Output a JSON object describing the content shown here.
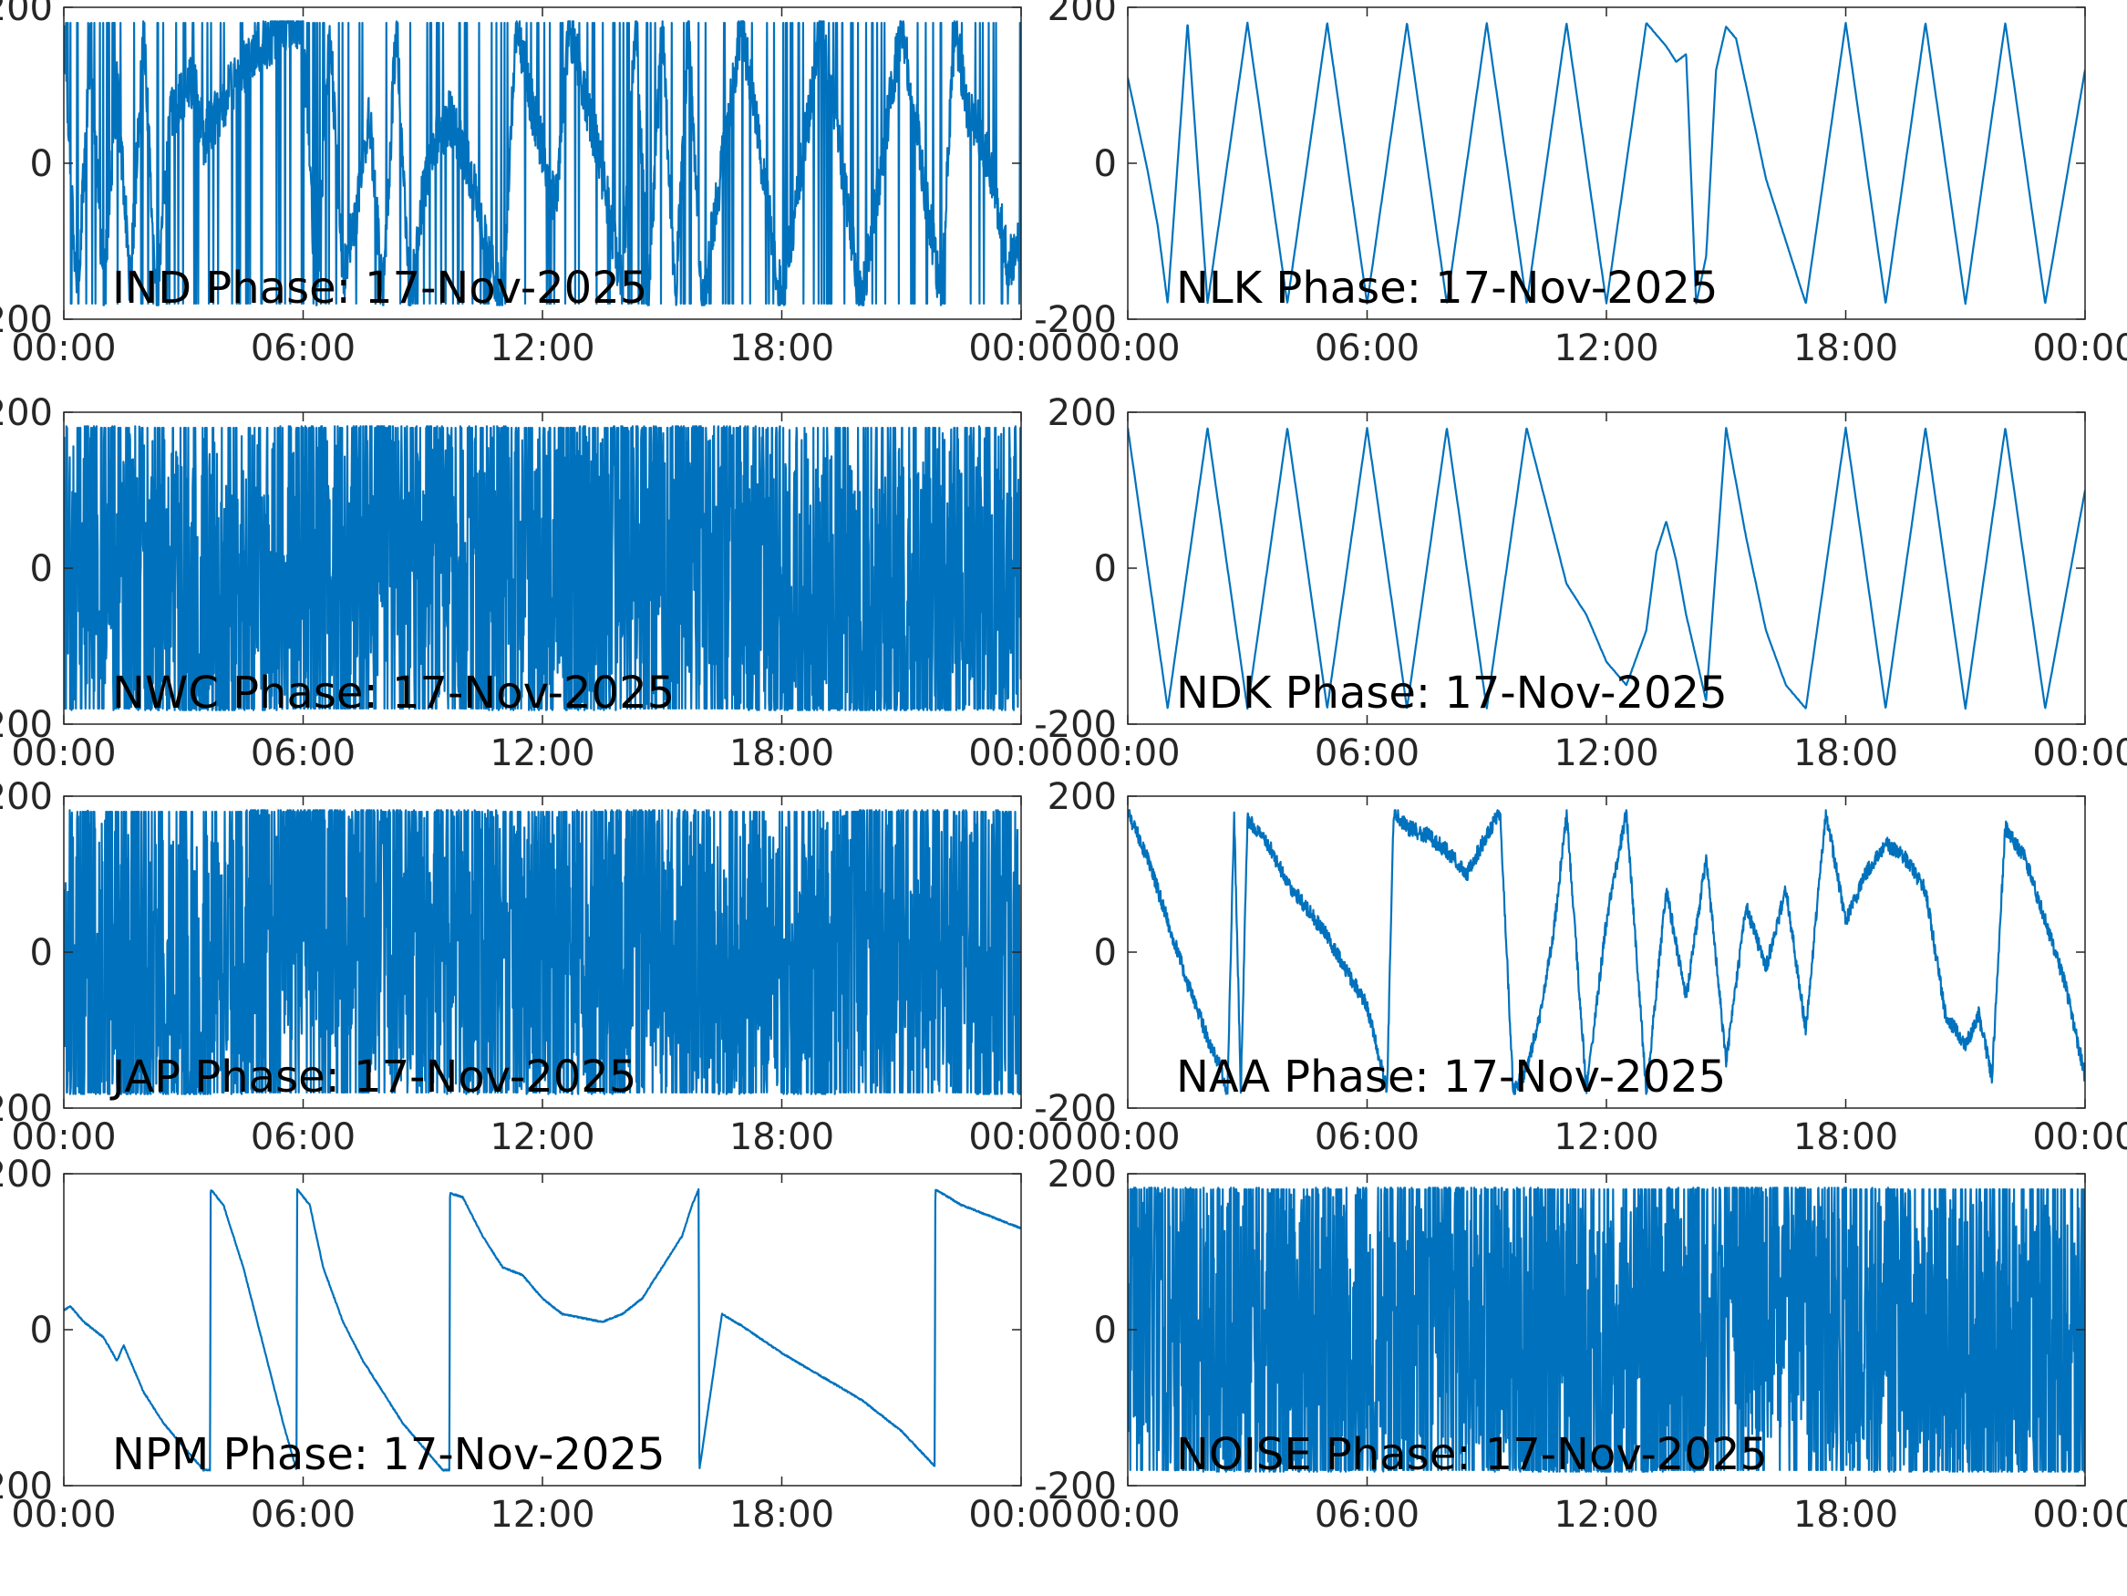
{
  "figure": {
    "date": "17-Nov-2025",
    "series_color": "#0072BD"
  },
  "chart_data": [
    {
      "type": "line",
      "title": "IND Phase: 17-Nov-2025",
      "xlabel": "",
      "ylabel": "",
      "xlim": [
        "00:00",
        "24:00"
      ],
      "ylim": [
        -200,
        200
      ],
      "xticks": [
        "00:00",
        "06:00",
        "12:00",
        "18:00",
        "00:00"
      ],
      "yticks": [
        "-200",
        "0",
        "200"
      ],
      "grid": false,
      "pattern": "mixed",
      "series": [
        {
          "x": [
            "00:00",
            "00:20",
            "00:40",
            "01:00",
            "01:20",
            "01:40",
            "02:00",
            "02:20",
            "02:40",
            "03:00",
            "03:15",
            "03:30",
            "04:00",
            "04:30",
            "05:00",
            "05:30",
            "06:00",
            "06:20",
            "06:40",
            "07:00",
            "07:20",
            "07:40",
            "08:00",
            "08:20",
            "08:40",
            "09:00",
            "09:20",
            "09:40",
            "10:00",
            "10:20",
            "10:40",
            "11:00",
            "11:20",
            "11:40",
            "12:00",
            "12:20",
            "12:40",
            "13:00",
            "13:20",
            "13:40",
            "14:00",
            "14:20",
            "14:40",
            "15:00",
            "15:20",
            "15:40",
            "16:00",
            "17:00",
            "18:00",
            "19:00",
            "20:00",
            "21:00",
            "22:00",
            "22:20",
            "22:40",
            "23:00",
            "23:20",
            "23:40",
            "24:00"
          ],
          "values": [
            180,
            -180,
            150,
            -170,
            100,
            -160,
            170,
            -180,
            60,
            90,
            110,
            30,
            80,
            120,
            150,
            180,
            175,
            -180,
            180,
            -150,
            -60,
            60,
            -180,
            180,
            -180,
            -40,
            30,
            60,
            20,
            -40,
            -120,
            -180,
            180,
            90,
            20,
            -60,
            180,
            100,
            30,
            -60,
            -160,
            180,
            -180,
            180,
            -180,
            180,
            -180,
            180,
            -180,
            180,
            -180,
            180,
            -180,
            180,
            60,
            40,
            -30,
            -130,
            -100
          ],
          "noise": 0.9
        }
      ]
    },
    {
      "type": "line",
      "title": "NLK Phase: 17-Nov-2025",
      "xlabel": "",
      "ylabel": "",
      "xlim": [
        "00:00",
        "24:00"
      ],
      "ylim": [
        -200,
        200
      ],
      "xticks": [
        "00:00",
        "06:00",
        "12:00",
        "18:00",
        "00:00"
      ],
      "yticks": [
        "-200",
        "0",
        "200"
      ],
      "grid": false,
      "pattern": "sawtooth-ramp",
      "series": [
        {
          "x": [
            "00:00",
            "00:15",
            "00:30",
            "00:45",
            "01:00",
            "01:30",
            "02:00",
            "03:00",
            "04:00",
            "05:00",
            "06:00",
            "07:00",
            "08:00",
            "09:00",
            "10:00",
            "11:00",
            "12:00",
            "13:00",
            "13:10",
            "13:30",
            "13:45",
            "14:00",
            "14:15",
            "14:30",
            "14:45",
            "15:00",
            "15:15",
            "15:30",
            "15:45",
            "16:00",
            "17:00",
            "18:00",
            "19:00",
            "20:00",
            "21:00",
            "22:00",
            "23:00",
            "24:00"
          ],
          "values": [
            110,
            50,
            -10,
            -80,
            -180,
            180,
            -180,
            180,
            -180,
            180,
            -180,
            180,
            -180,
            180,
            -180,
            180,
            -180,
            180,
            170,
            150,
            130,
            140,
            -180,
            -120,
            120,
            175,
            160,
            100,
            40,
            -20,
            -180,
            180,
            -180,
            180,
            -180,
            180,
            -180,
            120
          ],
          "noise": 0.02
        }
      ]
    },
    {
      "type": "line",
      "title": "NWC Phase: 17-Nov-2025",
      "xlabel": "",
      "ylabel": "",
      "xlim": [
        "00:00",
        "24:00"
      ],
      "ylim": [
        -200,
        200
      ],
      "xticks": [
        "00:00",
        "06:00",
        "12:00",
        "18:00",
        "00:00"
      ],
      "yticks": [
        "-200",
        "0",
        "200"
      ],
      "grid": false,
      "pattern": "wrapped-noise",
      "series": [
        {
          "x": [
            "00:00",
            "04:00",
            "08:00",
            "12:00",
            "16:00",
            "20:00",
            "24:00"
          ],
          "values": [
            20,
            -40,
            60,
            -20,
            40,
            -60,
            10
          ],
          "noise": 1.0
        }
      ]
    },
    {
      "type": "line",
      "title": "NDK Phase: 17-Nov-2025",
      "xlabel": "",
      "ylabel": "",
      "xlim": [
        "00:00",
        "24:00"
      ],
      "ylim": [
        -200,
        200
      ],
      "xticks": [
        "00:00",
        "06:00",
        "12:00",
        "18:00",
        "00:00"
      ],
      "yticks": [
        "-200",
        "0",
        "200"
      ],
      "grid": false,
      "pattern": "sawtooth-ramp",
      "series": [
        {
          "x": [
            "00:00",
            "01:00",
            "02:00",
            "03:00",
            "04:00",
            "05:00",
            "06:00",
            "07:00",
            "08:00",
            "09:00",
            "10:00",
            "11:00",
            "11:30",
            "12:00",
            "12:30",
            "13:00",
            "13:15",
            "13:30",
            "13:45",
            "14:00",
            "14:30",
            "15:00",
            "15:30",
            "16:00",
            "16:30",
            "17:00",
            "18:00",
            "19:00",
            "20:00",
            "21:00",
            "22:00",
            "23:00",
            "24:00"
          ],
          "values": [
            180,
            -180,
            180,
            -180,
            180,
            -180,
            180,
            -180,
            180,
            -180,
            180,
            -20,
            -60,
            -120,
            -150,
            -80,
            20,
            60,
            10,
            -60,
            -170,
            180,
            40,
            -80,
            -150,
            -180,
            180,
            -180,
            180,
            -180,
            180,
            -180,
            100
          ],
          "noise": 0.02
        }
      ]
    },
    {
      "type": "line",
      "title": "JAP Phase: 17-Nov-2025",
      "xlabel": "",
      "ylabel": "",
      "xlim": [
        "00:00",
        "24:00"
      ],
      "ylim": [
        -200,
        200
      ],
      "xticks": [
        "00:00",
        "06:00",
        "12:00",
        "18:00",
        "00:00"
      ],
      "yticks": [
        "-200",
        "0",
        "200"
      ],
      "grid": false,
      "pattern": "wrapped-noise",
      "series": [
        {
          "x": [
            "00:00",
            "03:00",
            "06:00",
            "09:00",
            "12:00",
            "15:00",
            "18:00",
            "21:00",
            "24:00"
          ],
          "values": [
            0,
            -60,
            80,
            20,
            -20,
            30,
            -40,
            40,
            -30
          ],
          "noise": 1.0
        }
      ]
    },
    {
      "type": "line",
      "title": "NAA Phase: 17-Nov-2025",
      "xlabel": "",
      "ylabel": "",
      "xlim": [
        "00:00",
        "24:00"
      ],
      "ylim": [
        -200,
        200
      ],
      "xticks": [
        "00:00",
        "06:00",
        "12:00",
        "18:00",
        "00:00"
      ],
      "yticks": [
        "-200",
        "0",
        "200"
      ],
      "grid": false,
      "pattern": "mixed",
      "series": [
        {
          "x": [
            "00:00",
            "00:30",
            "01:00",
            "01:30",
            "02:00",
            "02:20",
            "02:30",
            "02:40",
            "02:50",
            "03:00",
            "03:30",
            "04:00",
            "05:00",
            "06:00",
            "06:20",
            "06:30",
            "06:40",
            "07:00",
            "07:30",
            "08:00",
            "08:30",
            "09:00",
            "09:20",
            "09:40",
            "10:00",
            "10:20",
            "10:40",
            "11:00",
            "11:30",
            "12:00",
            "12:30",
            "13:00",
            "13:30",
            "14:00",
            "14:30",
            "15:00",
            "15:30",
            "16:00",
            "16:30",
            "17:00",
            "17:30",
            "18:00",
            "18:30",
            "19:00",
            "19:30",
            "20:00",
            "20:30",
            "21:00",
            "21:20",
            "21:40",
            "22:00",
            "22:30",
            "23:00",
            "23:30",
            "24:00"
          ],
          "values": [
            180,
            120,
            40,
            -40,
            -110,
            -150,
            -180,
            180,
            -180,
            170,
            140,
            90,
            20,
            -70,
            -140,
            -180,
            180,
            160,
            150,
            130,
            100,
            150,
            180,
            -180,
            -150,
            -80,
            20,
            180,
            -180,
            40,
            180,
            -180,
            80,
            -60,
            120,
            -140,
            60,
            -20,
            80,
            -100,
            180,
            40,
            100,
            140,
            120,
            80,
            -80,
            -120,
            -80,
            -160,
            160,
            120,
            40,
            -40,
            -160
          ],
          "noise": 0.25
        }
      ]
    },
    {
      "type": "line",
      "title": "NPM Phase: 17-Nov-2025",
      "xlabel": "",
      "ylabel": "",
      "xlim": [
        "00:00",
        "24:00"
      ],
      "ylim": [
        -200,
        200
      ],
      "xticks": [
        "00:00",
        "06:00",
        "12:00",
        "18:00",
        "00:00"
      ],
      "yticks": [
        "-200",
        "0",
        "200"
      ],
      "grid": false,
      "pattern": "slow-drift",
      "series": [
        {
          "x": [
            "00:00",
            "00:10",
            "00:30",
            "01:00",
            "01:20",
            "01:30",
            "01:40",
            "02:00",
            "02:30",
            "03:00",
            "03:30",
            "03:40",
            "03:41",
            "04:00",
            "04:30",
            "05:00",
            "05:30",
            "05:50",
            "05:51",
            "06:10",
            "06:30",
            "07:00",
            "07:30",
            "08:00",
            "08:30",
            "09:00",
            "09:30",
            "09:40",
            "09:41",
            "10:00",
            "10:30",
            "11:00",
            "11:30",
            "12:00",
            "12:30",
            "13:00",
            "13:30",
            "14:00",
            "14:30",
            "15:00",
            "15:30",
            "15:45",
            "15:55",
            "15:56",
            "16:30",
            "17:00",
            "18:00",
            "19:00",
            "20:00",
            "21:00",
            "21:50",
            "21:51",
            "22:30",
            "23:00",
            "24:00"
          ],
          "values": [
            25,
            30,
            10,
            -10,
            -40,
            -20,
            -40,
            -80,
            -120,
            -150,
            -180,
            -180,
            180,
            160,
            80,
            -20,
            -120,
            -180,
            180,
            160,
            80,
            10,
            -40,
            -80,
            -120,
            -150,
            -180,
            -180,
            175,
            170,
            120,
            80,
            70,
            40,
            20,
            15,
            10,
            20,
            40,
            80,
            120,
            160,
            180,
            -180,
            20,
            5,
            -30,
            -60,
            -90,
            -130,
            -175,
            180,
            160,
            150,
            130
          ],
          "noise": 0.04
        }
      ]
    },
    {
      "type": "line",
      "title": "NOISE Phase: 17-Nov-2025",
      "xlabel": "",
      "ylabel": "",
      "xlim": [
        "00:00",
        "24:00"
      ],
      "ylim": [
        -200,
        200
      ],
      "xticks": [
        "00:00",
        "06:00",
        "12:00",
        "18:00",
        "00:00"
      ],
      "yticks": [
        "-200",
        "0",
        "200"
      ],
      "grid": false,
      "pattern": "wrapped-noise",
      "series": [
        {
          "x": [
            "00:00",
            "04:00",
            "08:00",
            "12:00",
            "16:00",
            "20:00",
            "24:00"
          ],
          "values": [
            30,
            -20,
            40,
            -50,
            60,
            -30,
            -40
          ],
          "noise": 1.0
        }
      ]
    }
  ]
}
